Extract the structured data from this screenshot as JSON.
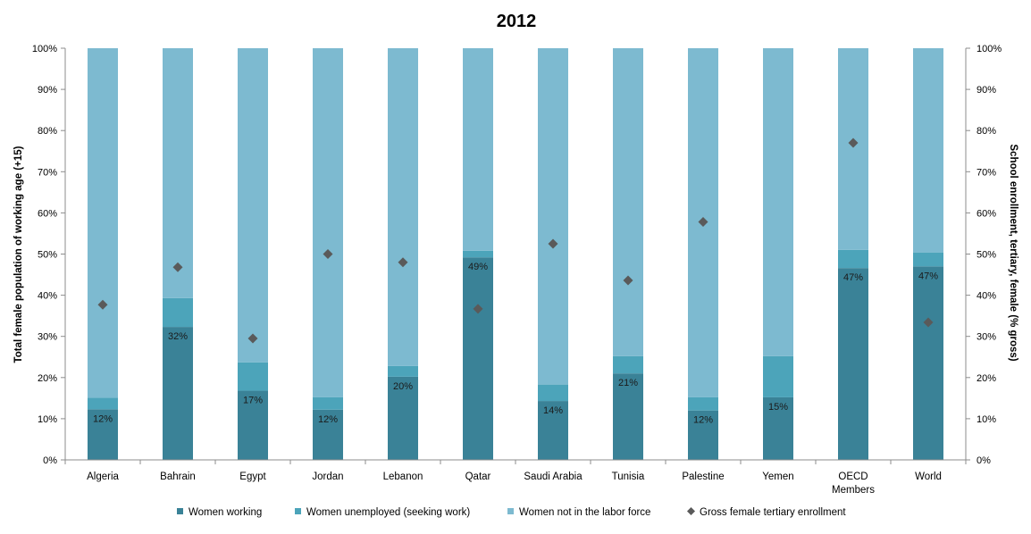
{
  "chart_data": {
    "type": "bar",
    "stacked": true,
    "title": "2012",
    "ylabel_left": "Total female population of working age (+15)",
    "ylabel_right": "School enrollment, tertiary, female (% gross)",
    "ylim": [
      0,
      100
    ],
    "y_ticks": [
      "0%",
      "10%",
      "20%",
      "30%",
      "40%",
      "50%",
      "60%",
      "70%",
      "80%",
      "90%",
      "100%"
    ],
    "categories": [
      "Algeria",
      "Bahrain",
      "Egypt",
      "Jordan",
      "Lebanon",
      "Qatar",
      "Saudi Arabia",
      "Tunisia",
      "Palestine",
      "Yemen",
      "OECD Members",
      "World"
    ],
    "category_lines": [
      [
        "Algeria"
      ],
      [
        "Bahrain"
      ],
      [
        "Egypt"
      ],
      [
        "Jordan"
      ],
      [
        "Lebanon"
      ],
      [
        "Qatar"
      ],
      [
        "Saudi Arabia"
      ],
      [
        "Tunisia"
      ],
      [
        "Palestine"
      ],
      [
        "Yemen"
      ],
      [
        "OECD",
        "Members"
      ],
      [
        "World"
      ]
    ],
    "series": [
      {
        "name": "Women working",
        "kind": "bar",
        "color": "#3A8297",
        "values": [
          12.3,
          32.3,
          16.8,
          12.2,
          20.2,
          49.2,
          14.3,
          21.0,
          12.0,
          15.2,
          46.6,
          47.0
        ],
        "labels": [
          "12%",
          "32%",
          "17%",
          "12%",
          "20%",
          "49%",
          "14%",
          "21%",
          "12%",
          "15%",
          "47%",
          "47%"
        ]
      },
      {
        "name": "Women unemployed (seeking work)",
        "kind": "bar",
        "color": "#4CA4BA",
        "values": [
          2.8,
          7.0,
          6.9,
          3.0,
          2.6,
          1.6,
          4.0,
          4.2,
          3.2,
          10.0,
          4.4,
          3.4
        ]
      },
      {
        "name": "Women not in the labor force",
        "kind": "bar",
        "color": "#7DBAD0",
        "values": [
          84.9,
          60.7,
          76.3,
          84.8,
          77.2,
          49.2,
          81.7,
          74.8,
          84.8,
          74.8,
          49.0,
          49.6
        ]
      },
      {
        "name": "Gross female tertiary enrollment",
        "kind": "scatter",
        "marker": "diamond",
        "color": "#5A5A5A",
        "values": [
          37.7,
          46.8,
          29.5,
          50.0,
          48.0,
          36.7,
          52.5,
          43.6,
          57.8,
          null,
          77.0,
          33.4
        ]
      }
    ],
    "grid": false,
    "legend_position": "bottom"
  }
}
